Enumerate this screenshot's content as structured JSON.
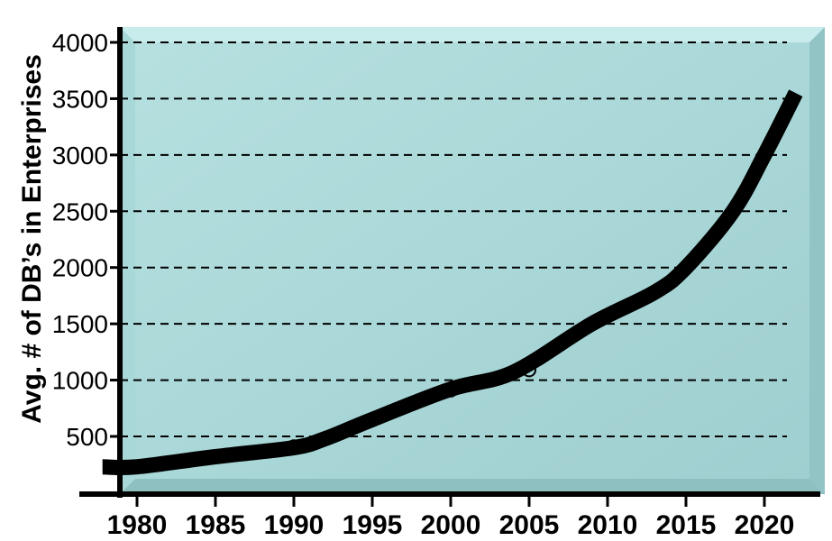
{
  "chart_data": {
    "type": "line",
    "title": "",
    "xlabel": "",
    "ylabel": "Avg. # of DB’s in Enterprises",
    "x": [
      1980,
      1985,
      1990,
      1995,
      2000,
      2005,
      2010,
      2015,
      2020
    ],
    "x_ticks": [
      "1980",
      "1985",
      "1990",
      "1995",
      "2000",
      "2005",
      "2010",
      "2015",
      "2020"
    ],
    "y_ticks": [
      "500",
      "1000",
      "1500",
      "2000",
      "2500",
      "3000",
      "3500",
      "4000"
    ],
    "ylim": [
      0,
      4000
    ],
    "grid": "dashed horizontal",
    "series": [
      {
        "points": [
          [
            1980,
            230
          ],
          [
            1985,
            320
          ],
          [
            1990,
            410
          ],
          [
            1995,
            650
          ],
          [
            2000,
            910
          ],
          [
            2005,
            1090
          ],
          [
            2009,
            1500
          ],
          [
            2015,
            2000
          ],
          [
            2020,
            3000
          ]
        ],
        "curve": [
          [
            1977.8,
            230
          ],
          [
            1980,
            230
          ],
          [
            1985,
            320
          ],
          [
            1990,
            400
          ],
          [
            1992,
            480
          ],
          [
            1995,
            650
          ],
          [
            2000,
            920
          ],
          [
            2004,
            1070
          ],
          [
            2009,
            1500
          ],
          [
            2013,
            1780
          ],
          [
            2015,
            2000
          ],
          [
            2018,
            2500
          ],
          [
            2020,
            3000
          ],
          [
            2022,
            3550
          ]
        ]
      }
    ],
    "colors": {
      "plot_background": "#a9d8d8",
      "line": "#000000",
      "grid": "#000000",
      "text": "#000000"
    }
  }
}
